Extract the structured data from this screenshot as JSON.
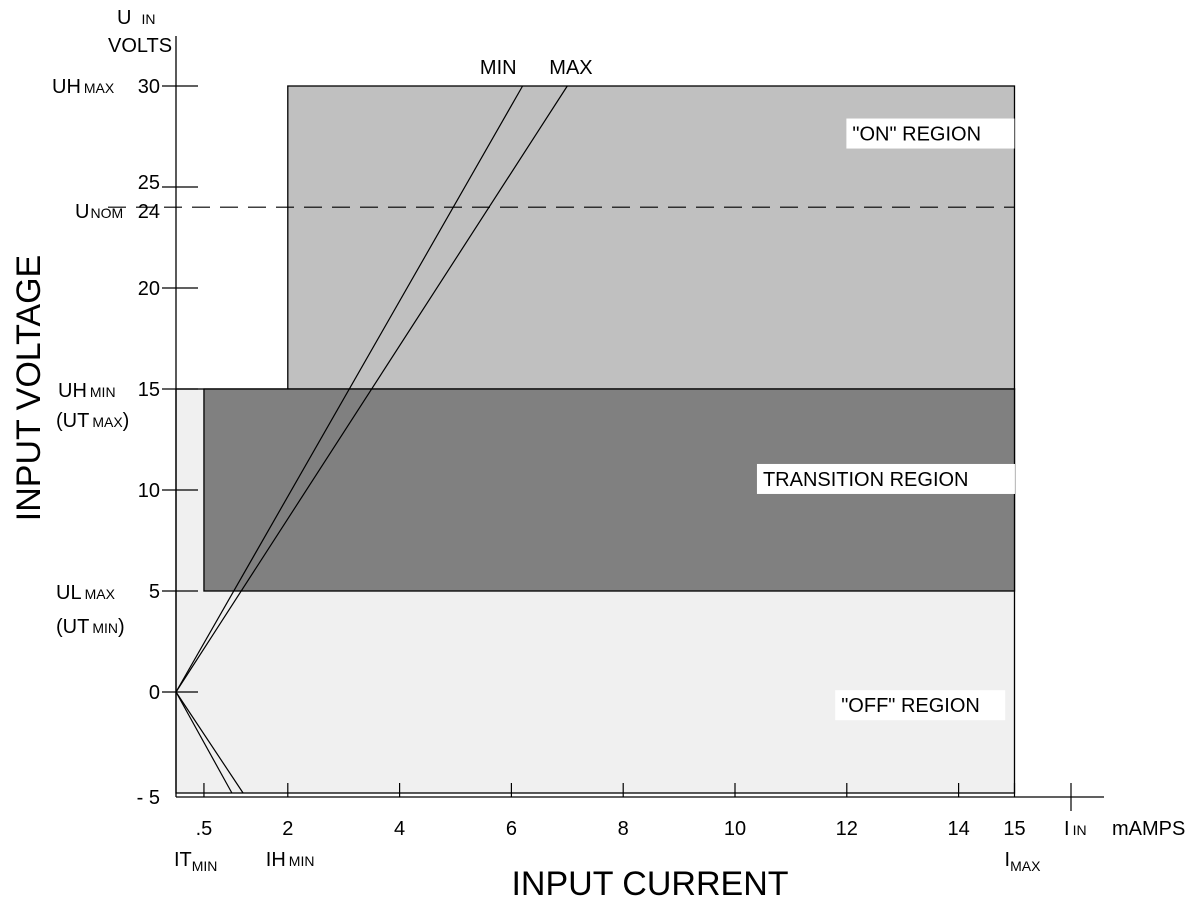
{
  "chart_data": {
    "type": "diagram",
    "xlabel": "INPUT CURRENT",
    "ylabel": "INPUT VOLTAGE",
    "x_unit": "mAMPS",
    "y_unit": "VOLTS",
    "xlim": [
      0,
      17
    ],
    "ylim": [
      -5,
      32
    ],
    "y_axis_symbol": {
      "main": "U",
      "sub": "IN"
    },
    "x_axis_symbol": {
      "main": "I",
      "sub": "IN"
    },
    "y_ticks": [
      {
        "value": 30,
        "label": "30"
      },
      {
        "value": 25,
        "label": "25"
      },
      {
        "value": 24,
        "label": "24"
      },
      {
        "value": 20,
        "label": "20"
      },
      {
        "value": 15,
        "label": "15"
      },
      {
        "value": 10,
        "label": "10"
      },
      {
        "value": 5,
        "label": "5"
      },
      {
        "value": 0,
        "label": "0"
      },
      {
        "value": -5,
        "label": "- 5"
      }
    ],
    "x_ticks": [
      {
        "value": 0.5,
        "label": ".5"
      },
      {
        "value": 2,
        "label": "2"
      },
      {
        "value": 4,
        "label": "4"
      },
      {
        "value": 6,
        "label": "6"
      },
      {
        "value": 8,
        "label": "8"
      },
      {
        "value": 10,
        "label": "10"
      },
      {
        "value": 12,
        "label": "12"
      },
      {
        "value": 14,
        "label": "14"
      },
      {
        "value": 15,
        "label": "15"
      }
    ],
    "y_annotations": [
      {
        "value": 30,
        "main": "UH",
        "sub": "MAX"
      },
      {
        "value": 24,
        "main": "U",
        "sub": "NOM"
      },
      {
        "value": 15,
        "main": "UH",
        "sub": "MIN",
        "second_main": "(UT",
        "second_sub": "MAX",
        "second_end": ")"
      },
      {
        "value": 5,
        "main": "UL",
        "sub": "MAX",
        "second_main": "(UT",
        "second_sub": "MIN",
        "second_end": ")"
      }
    ],
    "x_annotations": [
      {
        "value": 0.5,
        "main": "IT",
        "sub": "MIN"
      },
      {
        "value": 2,
        "main": "IH",
        "sub": "MIN"
      },
      {
        "value": 15,
        "main": "I",
        "sub": "MAX"
      }
    ],
    "regions": [
      {
        "name": "\"OFF\" REGION",
        "x": [
          0,
          15
        ],
        "y": [
          -5,
          15
        ],
        "color": "#f0f0f0"
      },
      {
        "name": "\"ON\" REGION",
        "x": [
          2,
          15
        ],
        "y": [
          15,
          30
        ],
        "color": "#c0c0c0"
      },
      {
        "name": "TRANSITION REGION",
        "x": [
          0.5,
          15
        ],
        "y": [
          5,
          15
        ],
        "color": "#808080"
      }
    ],
    "nominal_line": {
      "value": 24,
      "style": "dashed"
    },
    "load_lines": [
      {
        "name": "MIN",
        "from": [
          0,
          0
        ],
        "to": [
          6.2,
          30
        ]
      },
      {
        "name": "MAX",
        "from": [
          0,
          0
        ],
        "to": [
          7,
          30
        ]
      }
    ],
    "load_lines_below": [
      {
        "from": [
          0,
          0
        ],
        "to": [
          1,
          -5
        ]
      },
      {
        "from": [
          0,
          0
        ],
        "to": [
          1.2,
          -5
        ]
      }
    ]
  }
}
